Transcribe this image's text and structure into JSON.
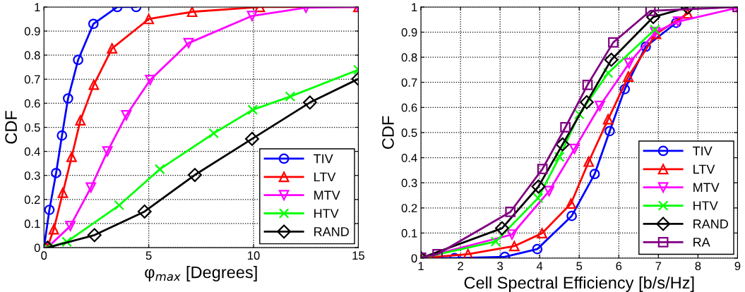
{
  "chart_data": [
    {
      "type": "line",
      "xlabel": "φ$_{max}$ [Degrees]",
      "ylabel": "CDF",
      "xlim": [
        0,
        15
      ],
      "ylim": [
        0,
        1
      ],
      "xticks": [
        0,
        5,
        10,
        15
      ],
      "yticks": [
        0,
        0.1,
        0.2,
        0.3,
        0.4,
        0.5,
        0.6,
        0.7,
        0.8,
        0.9,
        1
      ],
      "grid": true,
      "legend": "bottom right",
      "line_style": "solid",
      "series": [
        {
          "name": "TIV",
          "color": "#0000ff",
          "marker": "circle",
          "x": [
            0,
            0.26,
            0.58,
            0.86,
            1.15,
            1.63,
            2.36,
            3.5,
            4.4
          ],
          "values": [
            0,
            0.157,
            0.31,
            0.466,
            0.62,
            0.78,
            0.93,
            1.0,
            1.0
          ]
        },
        {
          "name": "LTV",
          "color": "#ff0000",
          "marker": "triangle",
          "x": [
            0.17,
            0.47,
            0.9,
            1.32,
            1.74,
            2.38,
            3.25,
            5,
            7.07,
            10.3,
            15
          ],
          "values": [
            0.003,
            0.076,
            0.228,
            0.377,
            0.529,
            0.677,
            0.828,
            0.95,
            0.98,
            1.0,
            1.0
          ]
        },
        {
          "name": "MTV",
          "color": "#ff00ff",
          "marker": "triangle_down",
          "x": [
            0.17,
            1.26,
            2.24,
            3.03,
            3.93,
            5.07,
            6.9,
            9.93,
            12.5,
            15
          ],
          "values": [
            0,
            0.09,
            0.25,
            0.4,
            0.55,
            0.697,
            0.85,
            0.963,
            0.997,
            1.0
          ]
        },
        {
          "name": "HTV",
          "color": "#00ff00",
          "marker": "cross",
          "x": [
            0.17,
            1.09,
            3.59,
            5.53,
            8.1,
            9.96,
            11.75,
            15
          ],
          "values": [
            0,
            0.024,
            0.176,
            0.326,
            0.475,
            0.573,
            0.628,
            0.739
          ]
        },
        {
          "name": "RAND",
          "color": "#000000",
          "marker": "diamond",
          "x": [
            0.17,
            2.41,
            4.8,
            7.2,
            9.93,
            12.69,
            15
          ],
          "values": [
            0,
            0.052,
            0.15,
            0.302,
            0.452,
            0.603,
            0.701
          ]
        }
      ]
    },
    {
      "type": "line",
      "xlabel": "Cell Spectral Efficiency [b/s/Hz]",
      "ylabel": "CDF",
      "xlim": [
        1,
        9
      ],
      "ylim": [
        0,
        1
      ],
      "xticks": [
        1,
        2,
        3,
        4,
        5,
        6,
        7,
        8,
        9
      ],
      "yticks": [
        0,
        0.1,
        0.2,
        0.3,
        0.4,
        0.5,
        0.6,
        0.7,
        0.8,
        0.9,
        1
      ],
      "grid": true,
      "legend": "bottom right",
      "line_style": "solid",
      "series": [
        {
          "name": "TIV",
          "color": "#0000ff",
          "marker": "circle",
          "x": [
            1,
            1.85,
            3.12,
            3.94,
            4.81,
            5.39,
            5.77,
            6.15,
            6.68,
            7.45
          ],
          "values": [
            0,
            0,
            0.005,
            0.036,
            0.168,
            0.335,
            0.506,
            0.673,
            0.842,
            0.937
          ]
        },
        {
          "name": "LTV",
          "color": "#ff0000",
          "marker": "triangle",
          "x": [
            1,
            2.19,
            3.36,
            4.06,
            4.79,
            5.24,
            5.73,
            6.24,
            6.94,
            7.74
          ],
          "values": [
            0,
            0.016,
            0.048,
            0.099,
            0.217,
            0.384,
            0.553,
            0.723,
            0.893,
            0.974
          ]
        },
        {
          "name": "MTV",
          "color": "#ff00ff",
          "marker": "triangle_down",
          "x": [
            1,
            3.3,
            4.24,
            4.88,
            5.52,
            6.26,
            6.92,
            7.5,
            9
          ],
          "values": [
            0,
            0.094,
            0.267,
            0.435,
            0.606,
            0.776,
            0.9,
            0.942,
            0.997
          ]
        },
        {
          "name": "HTV",
          "color": "#00ff00",
          "marker": "cross",
          "x": [
            1,
            2.89,
            3.96,
            4.5,
            5.0,
            5.73,
            6.91
          ],
          "values": [
            0,
            0.066,
            0.239,
            0.403,
            0.573,
            0.737,
            0.91
          ]
        },
        {
          "name": "RAND",
          "color": "#000000",
          "marker": "diamond",
          "x": [
            1,
            3.05,
            3.97,
            4.58,
            5.19,
            5.81,
            6.87,
            7.74
          ],
          "values": [
            0,
            0.119,
            0.285,
            0.453,
            0.621,
            0.79,
            0.96,
            0.998
          ]
        },
        {
          "name": "RA",
          "color": "#800080",
          "marker": "square",
          "x": [
            1,
            1.42,
            3.26,
            4.07,
            4.65,
            5.21,
            5.86,
            6.8,
            9
          ],
          "values": [
            0.002,
            0.016,
            0.184,
            0.355,
            0.521,
            0.69,
            0.859,
            0.985,
            1.0
          ]
        }
      ]
    }
  ]
}
